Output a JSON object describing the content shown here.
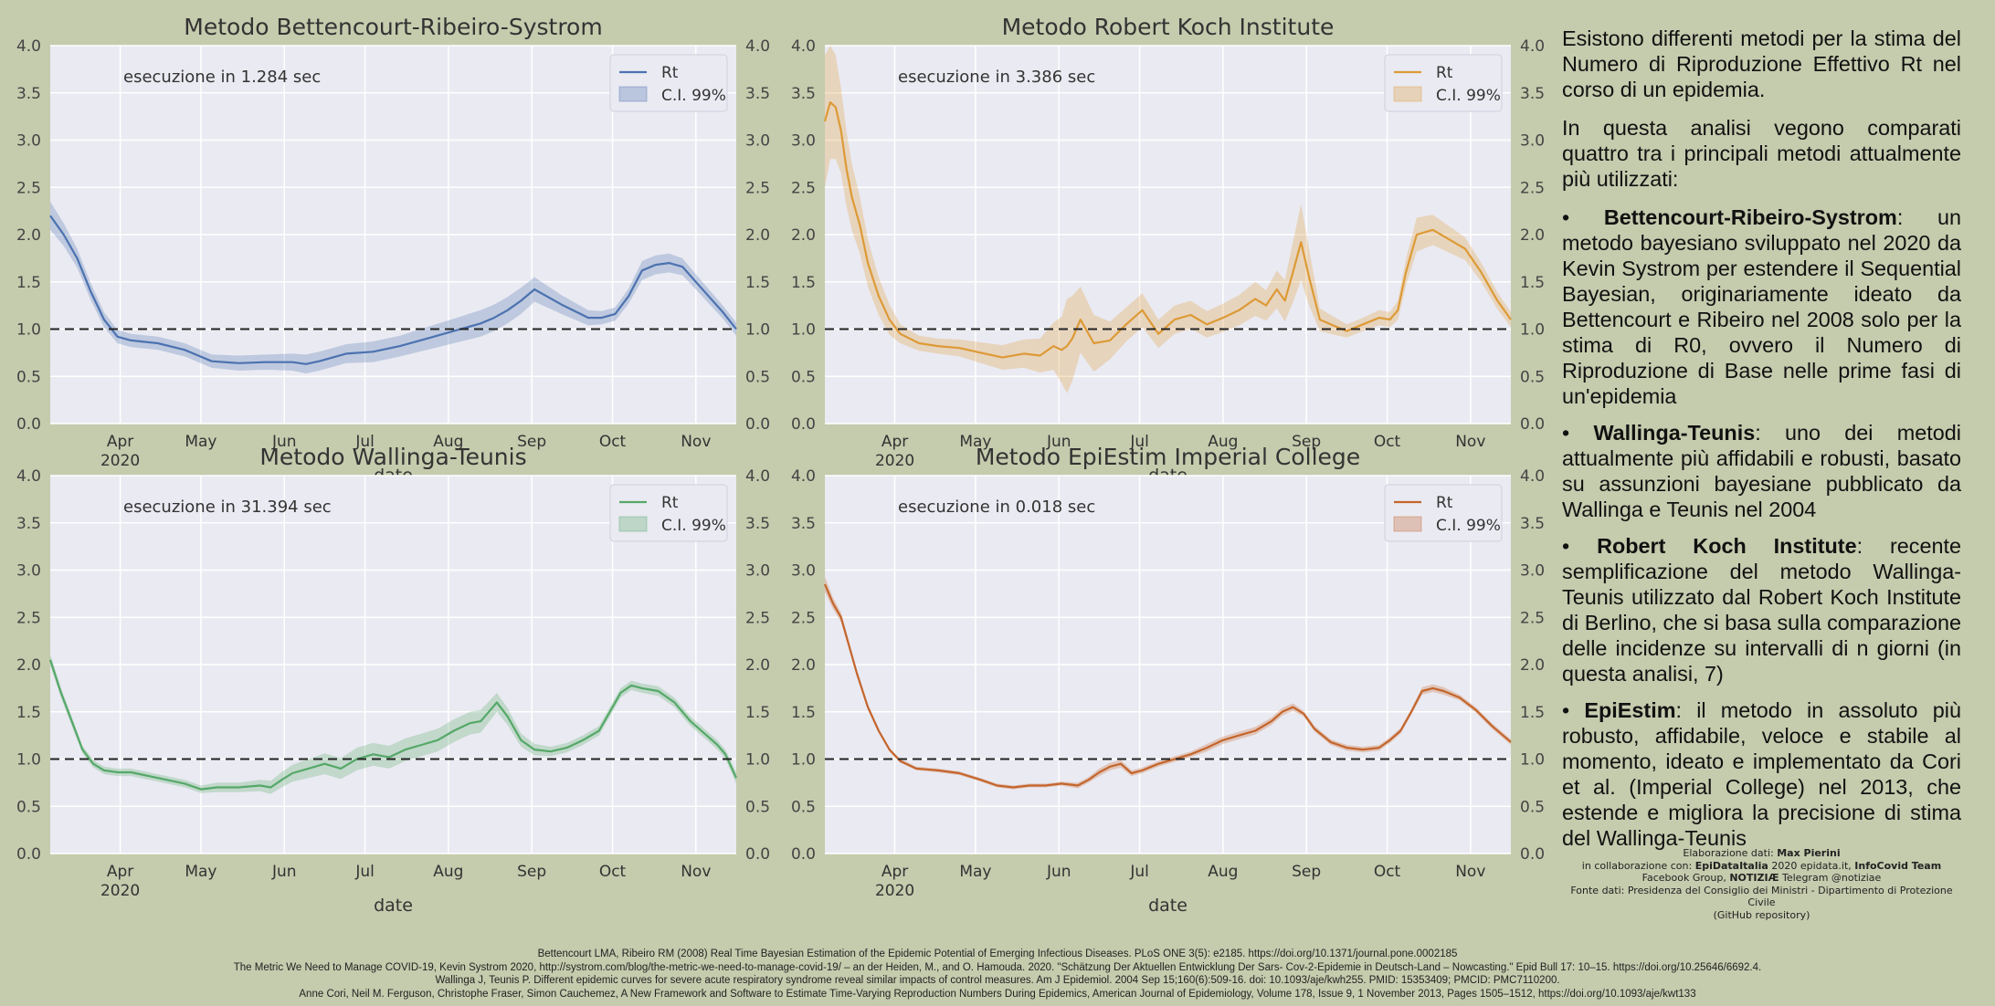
{
  "background_color": "#c5cbad",
  "chart_data": [
    {
      "type": "line",
      "id": "bettencourt",
      "title": "Metodo Bettencourt-Ribeiro-Systrom",
      "color": "#4c72b0",
      "execution_time": "esecuzione in 1.284 sec",
      "legend": [
        "Rt",
        "C.I. 99%"
      ],
      "xlabel": "date",
      "ylim": [
        0,
        4.0
      ],
      "xlim": [
        0,
        255
      ],
      "yticks": [
        "0.0",
        "0.5",
        "1.0",
        "1.5",
        "2.0",
        "2.5",
        "3.0",
        "3.5",
        "4.0"
      ],
      "xticks": [
        {
          "day": 26,
          "label": "Apr",
          "sub": "2020"
        },
        {
          "day": 56,
          "label": "May"
        },
        {
          "day": 87,
          "label": "Jun"
        },
        {
          "day": 117,
          "label": "Jul"
        },
        {
          "day": 148,
          "label": "Aug"
        },
        {
          "day": 179,
          "label": "Sep"
        },
        {
          "day": 209,
          "label": "Oct"
        },
        {
          "day": 240,
          "label": "Nov"
        }
      ],
      "reference_line": 1.0,
      "x": [
        0,
        5,
        10,
        15,
        20,
        25,
        30,
        40,
        50,
        55,
        60,
        70,
        80,
        90,
        95,
        100,
        110,
        120,
        130,
        140,
        150,
        160,
        165,
        170,
        175,
        180,
        190,
        200,
        205,
        210,
        215,
        220,
        225,
        230,
        235,
        240,
        250,
        255
      ],
      "values": [
        2.2,
        2.0,
        1.75,
        1.4,
        1.1,
        0.92,
        0.88,
        0.85,
        0.78,
        0.72,
        0.66,
        0.64,
        0.65,
        0.65,
        0.63,
        0.66,
        0.74,
        0.76,
        0.82,
        0.9,
        0.98,
        1.06,
        1.12,
        1.2,
        1.3,
        1.42,
        1.26,
        1.12,
        1.12,
        1.16,
        1.35,
        1.62,
        1.68,
        1.7,
        1.66,
        1.5,
        1.18,
        1.0
      ],
      "ci_half": [
        0.15,
        0.12,
        0.1,
        0.09,
        0.08,
        0.07,
        0.07,
        0.07,
        0.07,
        0.07,
        0.07,
        0.08,
        0.08,
        0.09,
        0.1,
        0.1,
        0.1,
        0.11,
        0.11,
        0.12,
        0.13,
        0.14,
        0.14,
        0.14,
        0.14,
        0.13,
        0.1,
        0.08,
        0.07,
        0.07,
        0.08,
        0.1,
        0.1,
        0.1,
        0.09,
        0.08,
        0.07,
        0.07
      ]
    },
    {
      "type": "line",
      "id": "rki",
      "title": "Metodo Robert Koch Institute",
      "color": "#dd9a36",
      "execution_time": "esecuzione in 3.386 sec",
      "legend": [
        "Rt",
        "C.I. 99%"
      ],
      "xlabel": "date",
      "ylim": [
        0,
        4.0
      ],
      "xlim": [
        0,
        255
      ],
      "yticks": [
        "0.0",
        "0.5",
        "1.0",
        "1.5",
        "2.0",
        "2.5",
        "3.0",
        "3.5",
        "4.0"
      ],
      "xticks": [
        {
          "day": 26,
          "label": "Apr",
          "sub": "2020"
        },
        {
          "day": 56,
          "label": "May"
        },
        {
          "day": 87,
          "label": "Jun"
        },
        {
          "day": 117,
          "label": "Jul"
        },
        {
          "day": 148,
          "label": "Aug"
        },
        {
          "day": 179,
          "label": "Sep"
        },
        {
          "day": 209,
          "label": "Oct"
        },
        {
          "day": 240,
          "label": "Nov"
        }
      ],
      "reference_line": 1.0,
      "x": [
        0,
        2,
        4,
        6,
        8,
        10,
        13,
        16,
        20,
        24,
        28,
        35,
        42,
        50,
        58,
        66,
        74,
        80,
        85,
        88,
        90,
        92,
        95,
        100,
        106,
        112,
        118,
        124,
        130,
        136,
        142,
        148,
        154,
        160,
        164,
        168,
        171,
        174,
        177,
        180,
        184,
        188,
        194,
        200,
        206,
        210,
        213,
        216,
        220,
        226,
        232,
        238,
        244,
        250,
        255
      ],
      "values": [
        3.2,
        3.4,
        3.35,
        3.1,
        2.7,
        2.4,
        2.1,
        1.7,
        1.35,
        1.1,
        0.95,
        0.85,
        0.82,
        0.8,
        0.75,
        0.7,
        0.74,
        0.72,
        0.82,
        0.78,
        0.82,
        0.9,
        1.1,
        0.85,
        0.88,
        1.05,
        1.2,
        0.95,
        1.1,
        1.15,
        1.05,
        1.12,
        1.2,
        1.32,
        1.25,
        1.42,
        1.3,
        1.6,
        1.92,
        1.55,
        1.1,
        1.05,
        0.98,
        1.05,
        1.12,
        1.1,
        1.2,
        1.6,
        2.0,
        2.05,
        1.95,
        1.85,
        1.6,
        1.3,
        1.1
      ],
      "ci_half": [
        0.7,
        0.6,
        0.55,
        0.45,
        0.4,
        0.35,
        0.3,
        0.25,
        0.2,
        0.16,
        0.1,
        0.08,
        0.08,
        0.09,
        0.11,
        0.13,
        0.15,
        0.18,
        0.25,
        0.35,
        0.5,
        0.45,
        0.35,
        0.3,
        0.2,
        0.18,
        0.18,
        0.15,
        0.15,
        0.15,
        0.14,
        0.15,
        0.16,
        0.18,
        0.16,
        0.2,
        0.22,
        0.32,
        0.4,
        0.3,
        0.12,
        0.1,
        0.07,
        0.07,
        0.08,
        0.08,
        0.1,
        0.14,
        0.18,
        0.16,
        0.14,
        0.12,
        0.1,
        0.09,
        0.08
      ]
    },
    {
      "type": "line",
      "id": "wallinga",
      "title": "Metodo Wallinga-Teunis",
      "color": "#55a868",
      "execution_time": "esecuzione in 31.394 sec",
      "legend": [
        "Rt",
        "C.I. 99%"
      ],
      "xlabel": "date",
      "ylim": [
        0,
        4.0
      ],
      "xlim": [
        0,
        255
      ],
      "yticks": [
        "0.0",
        "0.5",
        "1.0",
        "1.5",
        "2.0",
        "2.5",
        "3.0",
        "3.5",
        "4.0"
      ],
      "xticks": [
        {
          "day": 26,
          "label": "Apr",
          "sub": "2020"
        },
        {
          "day": 56,
          "label": "May"
        },
        {
          "day": 87,
          "label": "Jun"
        },
        {
          "day": 117,
          "label": "Jul"
        },
        {
          "day": 148,
          "label": "Aug"
        },
        {
          "day": 179,
          "label": "Sep"
        },
        {
          "day": 209,
          "label": "Oct"
        },
        {
          "day": 240,
          "label": "Nov"
        }
      ],
      "reference_line": 1.0,
      "x": [
        0,
        4,
        8,
        12,
        16,
        20,
        25,
        30,
        40,
        50,
        56,
        62,
        70,
        78,
        82,
        86,
        90,
        96,
        102,
        108,
        114,
        120,
        126,
        132,
        138,
        144,
        150,
        156,
        160,
        163,
        166,
        170,
        175,
        180,
        186,
        192,
        198,
        204,
        208,
        212,
        216,
        220,
        226,
        232,
        238,
        244,
        248,
        251,
        255
      ],
      "values": [
        2.05,
        1.7,
        1.4,
        1.1,
        0.95,
        0.88,
        0.86,
        0.86,
        0.8,
        0.74,
        0.68,
        0.7,
        0.7,
        0.72,
        0.7,
        0.78,
        0.85,
        0.9,
        0.95,
        0.9,
        1.0,
        1.05,
        1.02,
        1.1,
        1.15,
        1.2,
        1.3,
        1.38,
        1.4,
        1.5,
        1.6,
        1.45,
        1.2,
        1.1,
        1.08,
        1.12,
        1.2,
        1.3,
        1.5,
        1.7,
        1.78,
        1.75,
        1.72,
        1.6,
        1.4,
        1.25,
        1.15,
        1.05,
        0.8
      ],
      "ci_half": [
        0.06,
        0.05,
        0.05,
        0.04,
        0.04,
        0.04,
        0.04,
        0.04,
        0.04,
        0.04,
        0.04,
        0.05,
        0.05,
        0.06,
        0.07,
        0.08,
        0.09,
        0.1,
        0.11,
        0.11,
        0.12,
        0.12,
        0.12,
        0.12,
        0.12,
        0.12,
        0.12,
        0.12,
        0.12,
        0.11,
        0.1,
        0.09,
        0.07,
        0.06,
        0.05,
        0.05,
        0.05,
        0.05,
        0.05,
        0.05,
        0.05,
        0.05,
        0.05,
        0.05,
        0.05,
        0.05,
        0.05,
        0.05,
        0.06
      ]
    },
    {
      "type": "line",
      "id": "epiestim",
      "title": "Metodo EpiEstim Imperial College",
      "color": "#c4652c",
      "execution_time": "esecuzione in 0.018 sec",
      "legend": [
        "Rt",
        "C.I. 99%"
      ],
      "xlabel": "date",
      "ylim": [
        0,
        4.0
      ],
      "xlim": [
        0,
        255
      ],
      "yticks": [
        "0.0",
        "0.5",
        "1.0",
        "1.5",
        "2.0",
        "2.5",
        "3.0",
        "3.5",
        "4.0"
      ],
      "xticks": [
        {
          "day": 26,
          "label": "Apr",
          "sub": "2020"
        },
        {
          "day": 56,
          "label": "May"
        },
        {
          "day": 87,
          "label": "Jun"
        },
        {
          "day": 117,
          "label": "Jul"
        },
        {
          "day": 148,
          "label": "Aug"
        },
        {
          "day": 179,
          "label": "Sep"
        },
        {
          "day": 209,
          "label": "Oct"
        },
        {
          "day": 240,
          "label": "Nov"
        }
      ],
      "reference_line": 1.0,
      "x": [
        0,
        3,
        6,
        9,
        12,
        16,
        20,
        24,
        28,
        34,
        42,
        50,
        58,
        64,
        70,
        76,
        82,
        88,
        94,
        98,
        102,
        106,
        110,
        114,
        118,
        124,
        130,
        136,
        142,
        148,
        154,
        160,
        166,
        170,
        174,
        178,
        182,
        188,
        194,
        200,
        206,
        210,
        214,
        218,
        222,
        226,
        230,
        236,
        242,
        248,
        255
      ],
      "values": [
        2.85,
        2.65,
        2.5,
        2.2,
        1.9,
        1.55,
        1.3,
        1.1,
        0.98,
        0.9,
        0.88,
        0.85,
        0.78,
        0.72,
        0.7,
        0.72,
        0.72,
        0.74,
        0.72,
        0.78,
        0.86,
        0.92,
        0.95,
        0.85,
        0.88,
        0.95,
        1.0,
        1.05,
        1.12,
        1.2,
        1.25,
        1.3,
        1.4,
        1.5,
        1.55,
        1.48,
        1.32,
        1.18,
        1.12,
        1.1,
        1.12,
        1.2,
        1.3,
        1.5,
        1.72,
        1.75,
        1.72,
        1.65,
        1.52,
        1.35,
        1.18
      ],
      "ci_half": [
        0.08,
        0.06,
        0.05,
        0.04,
        0.03,
        0.03,
        0.02,
        0.02,
        0.02,
        0.02,
        0.02,
        0.02,
        0.02,
        0.02,
        0.02,
        0.02,
        0.02,
        0.02,
        0.03,
        0.03,
        0.04,
        0.04,
        0.04,
        0.03,
        0.03,
        0.03,
        0.03,
        0.03,
        0.04,
        0.04,
        0.04,
        0.04,
        0.04,
        0.04,
        0.04,
        0.03,
        0.03,
        0.03,
        0.03,
        0.03,
        0.03,
        0.03,
        0.03,
        0.03,
        0.04,
        0.04,
        0.04,
        0.03,
        0.03,
        0.03,
        0.03
      ]
    }
  ],
  "side_panel": {
    "intro_1": "Esistono differenti metodi per la stima del Numero di Riproduzione Effettivo Rt nel corso di un epidemia.",
    "intro_2": "In questa analisi vegono comparati quattro tra i principali metodi attualmente più utilizzati:",
    "bullets": [
      {
        "name": "Bettencourt-Ribeiro-Systrom",
        "text": ": un metodo bayesiano sviluppato nel 2020 da Kevin Systrom per estendere il Sequential Bayesian, originariamente ideato da Bettencourt e Ribeiro nel 2008 solo per la stima di R0, ovvero il Numero di Riproduzione di Base nelle prime fasi di un'epidemia"
      },
      {
        "name": "Wallinga-Teunis",
        "text": ": uno dei metodi attualmente più affidabili e robusti, basato su assunzioni bayesiane pubblicato da Wallinga e Teunis nel 2004"
      },
      {
        "name": "Robert Koch Institute",
        "text": ": recente semplificazione del metodo Wallinga-Teunis utilizzato dal Robert Koch Institute di Berlino, che si basa sulla comparazione delle incidenze su intervalli di n giorni (in questa analisi, 7)"
      },
      {
        "name": "EpiEstim",
        "text": ": il metodo in assoluto più robusto, affidabile, veloce e stabile al momento, ideato e implementato da Cori et al. (Imperial College) nel 2013, che estende e migliora la precisione di stima del Wallinga-Teunis"
      }
    ]
  },
  "credits": {
    "line1_prefix": "Elaborazione dati: ",
    "author": "Max Pierini",
    "line2_prefix": "in collaborazione con: ",
    "partner_1": "EpiDataItalia",
    "line2_mid": " 2020 epidata.it, ",
    "partner_2": "InfoCovid Team",
    "line3_prefix": "Facebook Group, ",
    "partner_3": "NOTIZIÆ",
    "line3_suffix": " Telegram @notiziae",
    "line4": "Fonte dati: Presidenza del Consiglio dei Ministri - Dipartimento di Protezione Civile",
    "line5": "(GitHub repository)"
  },
  "references": [
    "Bettencourt LMA, Ribeiro RM (2008) Real Time Bayesian Estimation of the Epidemic Potential of Emerging Infectious Diseases. PLoS ONE 3(5): e2185. https://doi.org/10.1371/journal.pone.0002185",
    "The Metric We Need to Manage COVID-19, Kevin Systrom 2020, http://systrom.com/blog/the-metric-we-need-to-manage-covid-19/ – an der Heiden, M., and O. Hamouda. 2020. \"Schätzung Der Aktuellen Entwicklung Der Sars- Cov-2-Epidemie in Deutsch-Land – Nowcasting.\" Epid Bull 17: 10–15. https://doi.org/10.25646/6692.4.",
    "Wallinga J, Teunis P. Different epidemic curves for severe acute respiratory syndrome reveal similar impacts of control measures. Am J Epidemiol. 2004 Sep 15;160(6):509-16. doi: 10.1093/aje/kwh255. PMID: 15353409; PMCID: PMC7110200.",
    "Anne Cori, Neil M. Ferguson, Christophe Fraser, Simon Cauchemez, A New Framework and Software to Estimate Time-Varying Reproduction Numbers During Epidemics, American Journal of Epidemiology, Volume 178, Issue 9, 1 November 2013, Pages 1505–1512, https://doi.org/10.1093/aje/kwt133"
  ]
}
